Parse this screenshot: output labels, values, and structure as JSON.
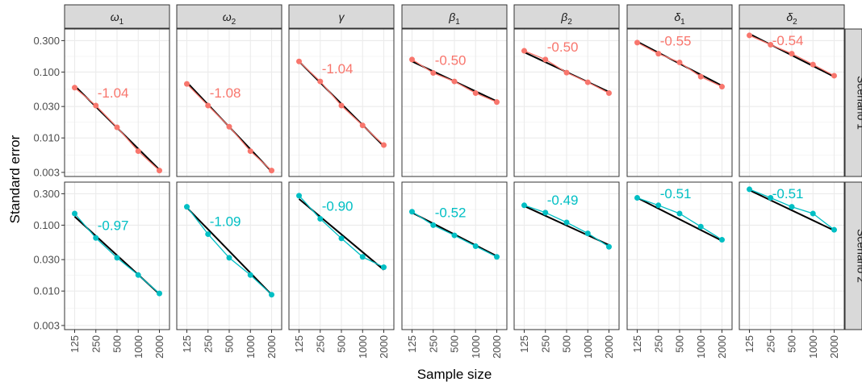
{
  "chart_data": {
    "type": "line",
    "title": "",
    "xlabel": "Sample size",
    "ylabel": "Standard error",
    "y_scale": "log10",
    "ylim": [
      0.0026,
      0.45
    ],
    "grid": true,
    "x_ticks": [
      "125",
      "250",
      "500",
      "1000",
      "2000"
    ],
    "y_ticks": [
      "0.003",
      "0.010",
      "0.030",
      "0.100",
      "0.300"
    ],
    "y_tick_values": [
      0.003,
      0.01,
      0.03,
      0.1,
      0.3
    ],
    "columns": [
      "ω1",
      "ω2",
      "γ",
      "β1",
      "β2",
      "δ1",
      "δ2"
    ],
    "column_labels": [
      {
        "sym": "ω",
        "sub": "1"
      },
      {
        "sym": "ω",
        "sub": "2"
      },
      {
        "sym": "γ",
        "sub": ""
      },
      {
        "sym": "β",
        "sub": "1"
      },
      {
        "sym": "β",
        "sub": "2"
      },
      {
        "sym": "δ",
        "sub": "1"
      },
      {
        "sym": "δ",
        "sub": "2"
      }
    ],
    "rows": [
      {
        "label": "Scenario 1",
        "color": "#F8766D",
        "panels": [
          {
            "slope": "-1.04",
            "values": [
              0.058,
              0.031,
              0.0145,
              0.0063,
              0.0032
            ],
            "fit": [
              0.062,
              0.0033
            ]
          },
          {
            "slope": "-1.08",
            "values": [
              0.066,
              0.031,
              0.0148,
              0.0063,
              0.0032
            ],
            "fit": [
              0.07,
              0.0031
            ]
          },
          {
            "slope": "-1.04",
            "values": [
              0.145,
              0.072,
              0.031,
              0.0155,
              0.0078
            ],
            "fit": [
              0.145,
              0.0075
            ]
          },
          {
            "slope": "-0.50",
            "values": [
              0.155,
              0.097,
              0.072,
              0.048,
              0.035
            ],
            "fit": [
              0.145,
              0.036
            ]
          },
          {
            "slope": "-0.50",
            "values": [
              0.21,
              0.155,
              0.098,
              0.07,
              0.048
            ],
            "fit": [
              0.2,
              0.05
            ]
          },
          {
            "slope": "-0.55",
            "values": [
              0.28,
              0.19,
              0.14,
              0.085,
              0.06
            ],
            "fit": [
              0.29,
              0.062
            ]
          },
          {
            "slope": "-0.54",
            "values": [
              0.36,
              0.26,
              0.19,
              0.13,
              0.088
            ],
            "fit": [
              0.38,
              0.085
            ]
          }
        ]
      },
      {
        "label": "Scenario 2",
        "color": "#00BFC4",
        "panels": [
          {
            "slope": "-0.97",
            "values": [
              0.15,
              0.064,
              0.032,
              0.0175,
              0.0092
            ],
            "fit": [
              0.135,
              0.009
            ]
          },
          {
            "slope": "-1.09",
            "values": [
              0.19,
              0.073,
              0.032,
              0.0175,
              0.0088
            ],
            "fit": [
              0.185,
              0.0088
            ]
          },
          {
            "slope": "-0.90",
            "values": [
              0.28,
              0.125,
              0.063,
              0.033,
              0.023
            ],
            "fit": [
              0.25,
              0.021
            ]
          },
          {
            "slope": "-0.52",
            "values": [
              0.16,
              0.1,
              0.07,
              0.048,
              0.033
            ],
            "fit": [
              0.155,
              0.034
            ]
          },
          {
            "slope": "-0.49",
            "values": [
              0.2,
              0.155,
              0.11,
              0.075,
              0.047
            ],
            "fit": [
              0.195,
              0.05
            ]
          },
          {
            "slope": "-0.51",
            "values": [
              0.26,
              0.2,
              0.15,
              0.095,
              0.06
            ],
            "fit": [
              0.26,
              0.058
            ]
          },
          {
            "slope": "-0.51",
            "values": [
              0.35,
              0.26,
              0.19,
              0.15,
              0.085
            ],
            "fit": [
              0.34,
              0.083
            ]
          }
        ]
      }
    ]
  }
}
